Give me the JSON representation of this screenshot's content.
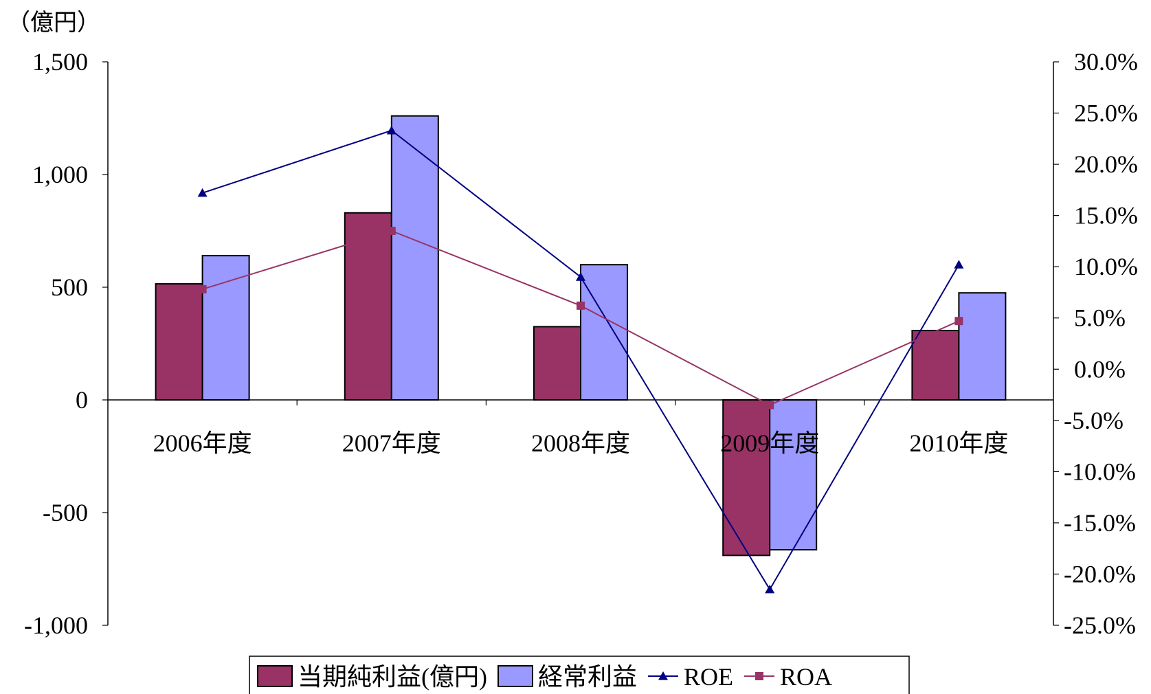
{
  "chart_data": {
    "type": "bar",
    "unit_label": "（億円）",
    "categories": [
      "2006年度",
      "2007年度",
      "2008年度",
      "2009年度",
      "2010年度"
    ],
    "series": [
      {
        "name": "当期純利益(億円)",
        "type": "bar",
        "axis": "left",
        "color": "#993366",
        "values": [
          515,
          830,
          325,
          -690,
          308
        ]
      },
      {
        "name": "経常利益",
        "type": "bar",
        "axis": "left",
        "color": "#9999FF",
        "values": [
          640,
          1260,
          600,
          -665,
          475
        ]
      },
      {
        "name": "ROE",
        "type": "line",
        "axis": "right",
        "color": "#000080",
        "marker": "triangle",
        "values": [
          17.2,
          23.3,
          9.0,
          -21.5,
          10.2
        ]
      },
      {
        "name": "ROA",
        "type": "line",
        "axis": "right",
        "color": "#993366",
        "marker": "square",
        "values": [
          7.8,
          13.5,
          6.2,
          -3.5,
          4.7
        ]
      }
    ],
    "y_left": {
      "ylim": [
        -1000,
        1500
      ],
      "ticks": [
        -1000,
        -500,
        0,
        500,
        1000,
        1500
      ],
      "tick_labels": [
        "-1,000",
        "-500",
        "0",
        "500",
        "1,000",
        "1,500"
      ]
    },
    "y_right": {
      "ylim": [
        -25,
        30
      ],
      "ticks": [
        -25,
        -20,
        -15,
        -10,
        -5,
        0,
        5,
        10,
        15,
        20,
        25,
        30
      ],
      "tick_labels": [
        "-25.0%",
        "-20.0%",
        "-15.0%",
        "-10.0%",
        "-5.0%",
        "0.0%",
        "5.0%",
        "10.0%",
        "15.0%",
        "20.0%",
        "25.0%",
        "30.0%"
      ]
    },
    "grid": false,
    "legend_position": "bottom"
  }
}
